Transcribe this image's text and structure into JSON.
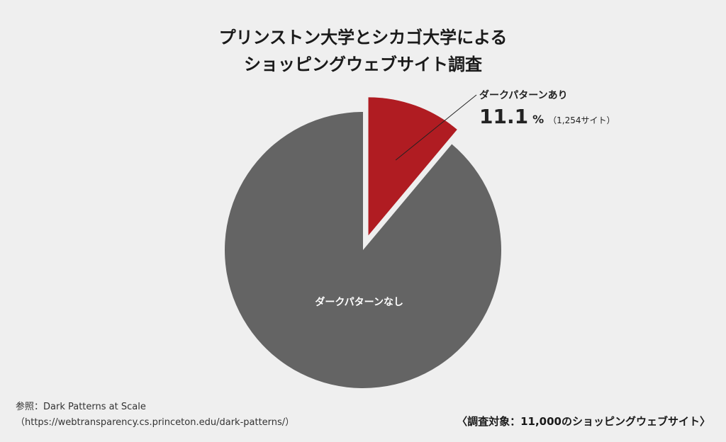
{
  "title": {
    "line1": "プリンストン大学とシカゴ大学による",
    "line2": "ショッピングウェブサイト調査"
  },
  "chart_data": {
    "type": "pie",
    "title": "プリンストン大学とシカゴ大学による ショッピングウェブサイト調査",
    "slices": [
      {
        "label": "ダークパターンあり",
        "value": 11.1,
        "count": "1,254サイト",
        "color": "#b01c22",
        "exploded": true
      },
      {
        "label": "ダークパターンなし",
        "value": 88.9,
        "color": "#646464",
        "exploded": false
      }
    ],
    "unit": "%"
  },
  "callout": {
    "label": "ダークパターンあり",
    "value": "11.1",
    "unit": "%",
    "count": "（1,254サイト）"
  },
  "inside_label": "ダークパターンなし",
  "source": {
    "line1": "参照：Dark Patterns at Scale",
    "line2": "（https://webtransparency.cs.princeton.edu/dark-patterns/）"
  },
  "scope": "〈調査対象：11,000のショッピングウェブサイト〉"
}
